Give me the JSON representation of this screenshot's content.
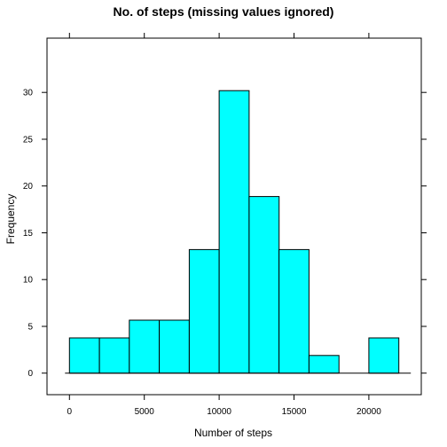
{
  "chart_data": {
    "type": "bar",
    "title": "No. of steps (missing values ignored)",
    "xlabel": "Number of steps",
    "ylabel": "Frequency",
    "bin_width": 2000,
    "bins": [
      {
        "start": 0,
        "end": 2000,
        "percent": 3.77
      },
      {
        "start": 2000,
        "end": 4000,
        "percent": 3.77
      },
      {
        "start": 4000,
        "end": 6000,
        "percent": 5.66
      },
      {
        "start": 6000,
        "end": 8000,
        "percent": 5.66
      },
      {
        "start": 8000,
        "end": 10000,
        "percent": 13.21
      },
      {
        "start": 10000,
        "end": 12000,
        "percent": 30.19
      },
      {
        "start": 12000,
        "end": 14000,
        "percent": 18.87
      },
      {
        "start": 14000,
        "end": 16000,
        "percent": 13.21
      },
      {
        "start": 16000,
        "end": 18000,
        "percent": 1.89
      },
      {
        "start": 18000,
        "end": 20000,
        "percent": 0
      },
      {
        "start": 20000,
        "end": 22000,
        "percent": 3.77
      }
    ],
    "xlim": [
      -1500,
      23500
    ],
    "ylim": [
      -2.3,
      35.8
    ],
    "xticks": [
      0,
      5000,
      10000,
      15000,
      20000
    ],
    "xtick_labels": [
      "0",
      "5000",
      "10000",
      "15000",
      "20000"
    ],
    "yticks": [
      0,
      5,
      10,
      15,
      20,
      25,
      30
    ],
    "ytick_labels": [
      "0",
      "5",
      "10",
      "15",
      "20",
      "25",
      "30"
    ],
    "grid": false,
    "legend": "none",
    "bar_color": "#00FFFF",
    "edge_color": "#000000"
  }
}
